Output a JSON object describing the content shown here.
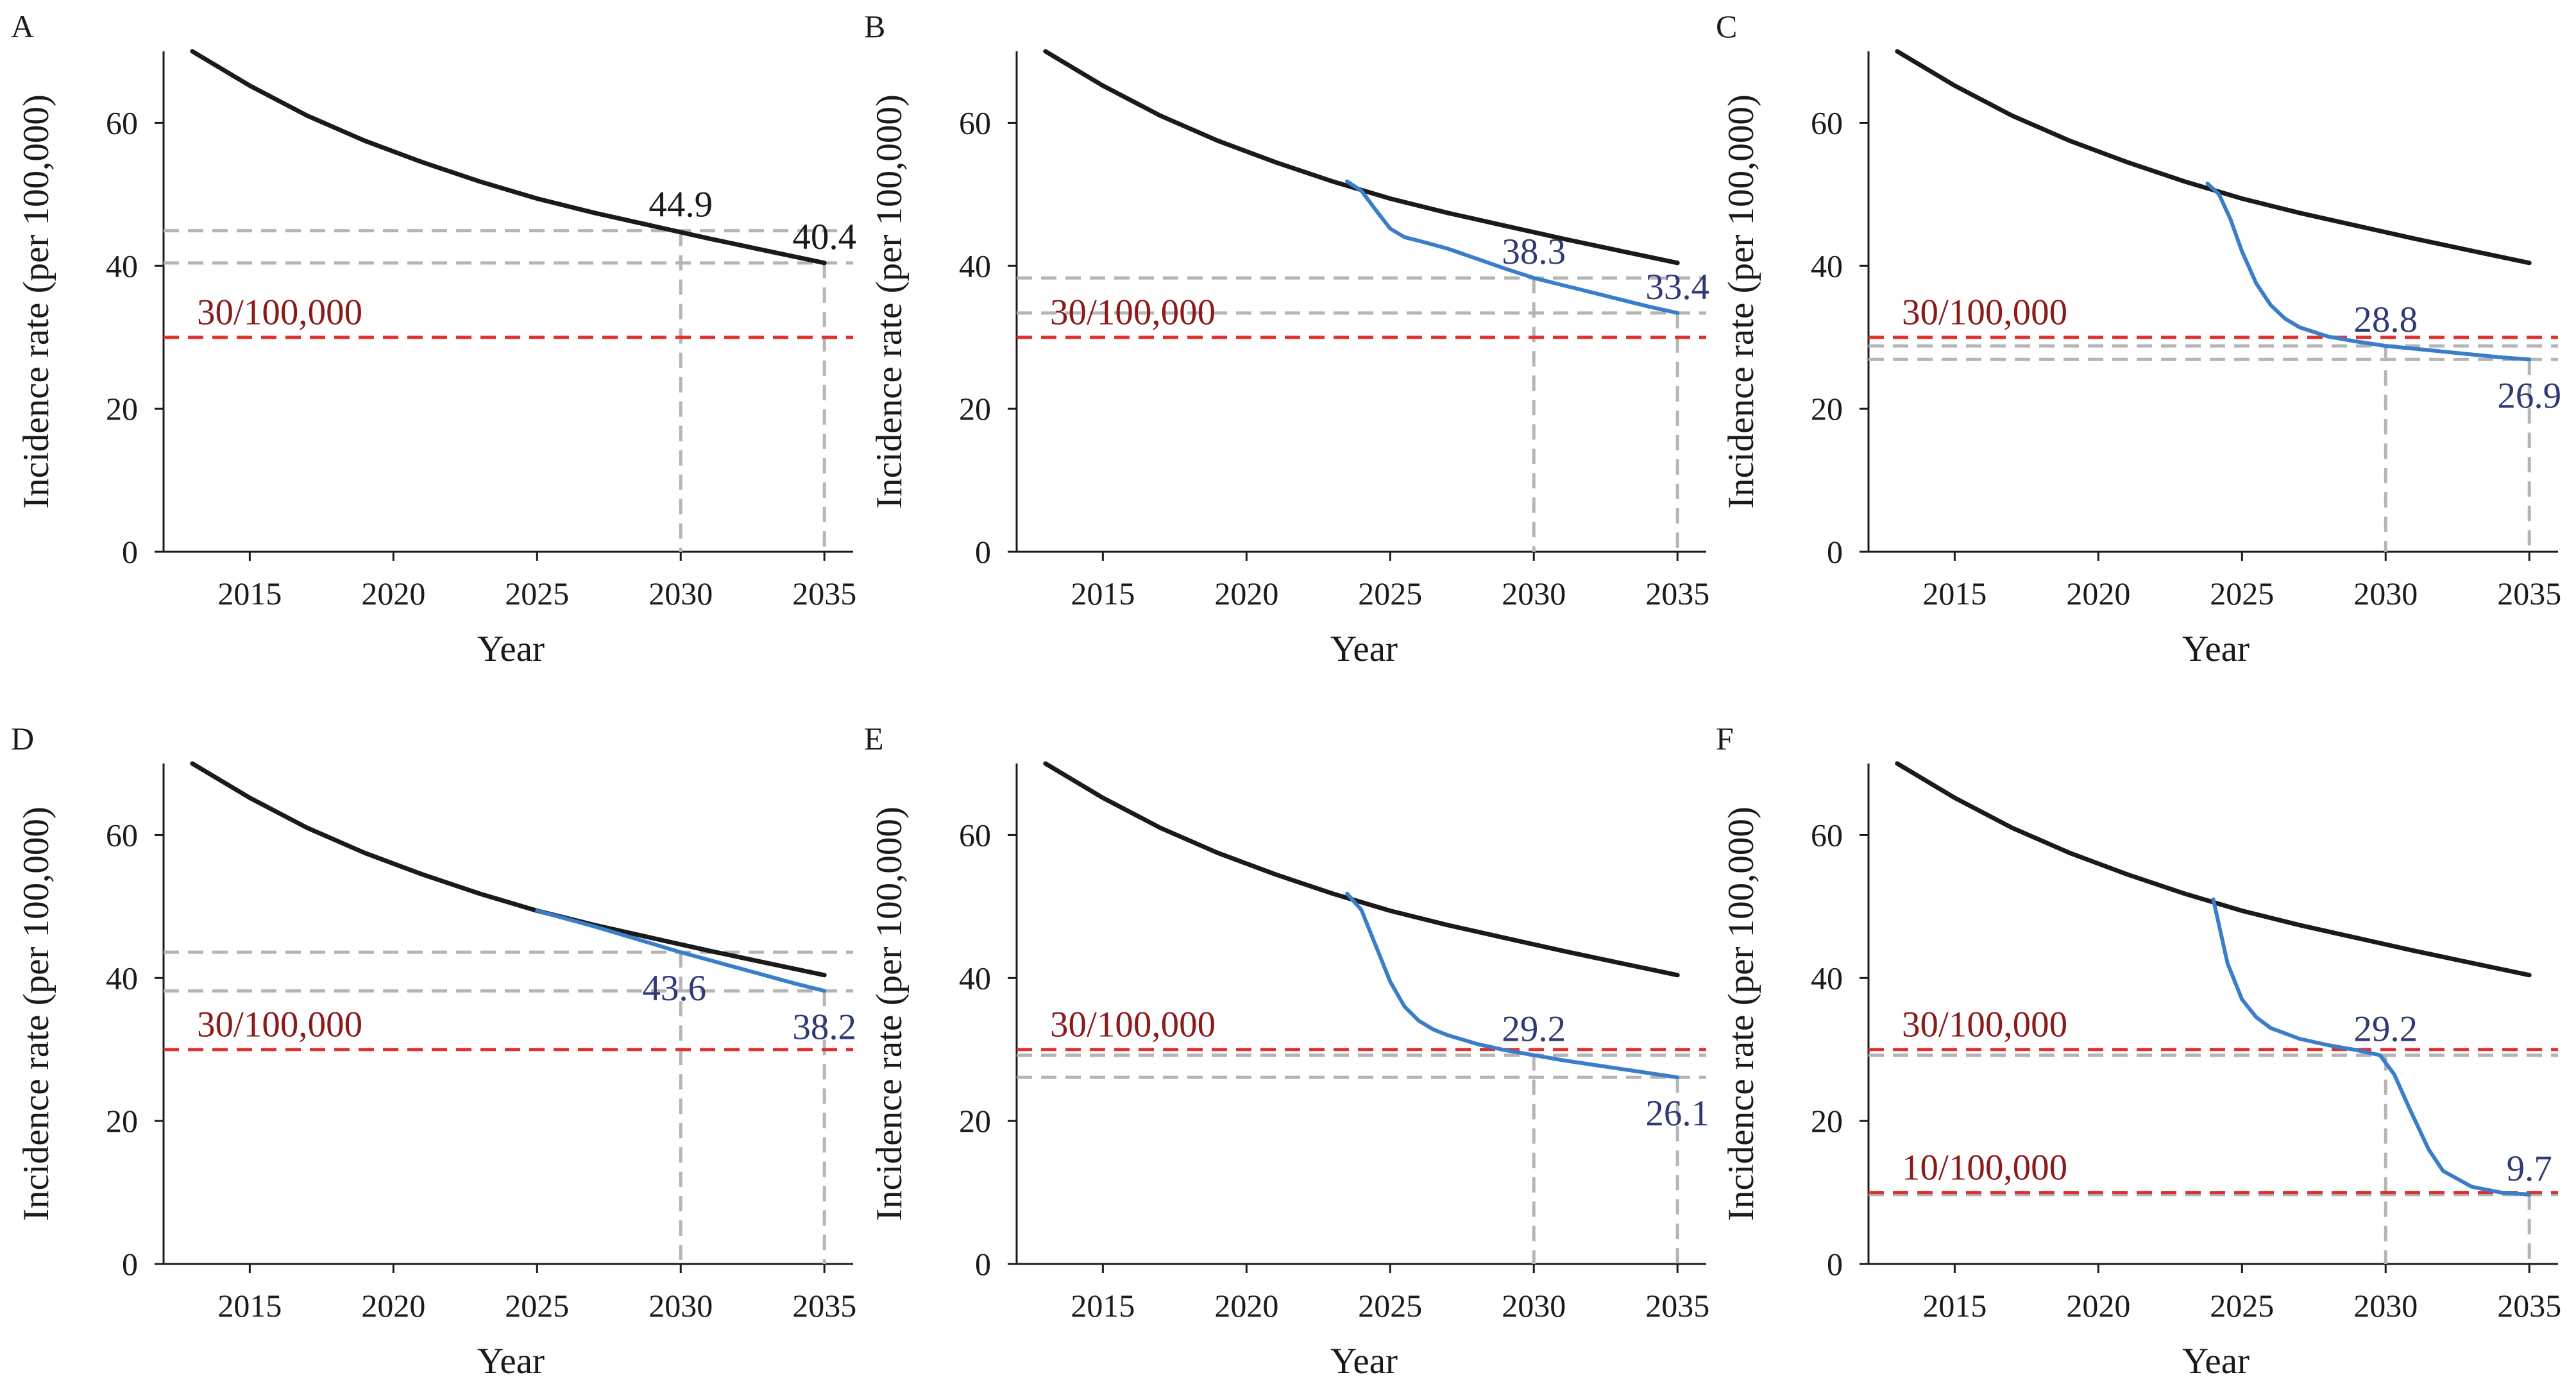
{
  "colors": {
    "baseline": "#1a1a1a",
    "intervention": "#3a7dc9",
    "threshold": "#e0312e",
    "threshold_text": "#8b1a1a",
    "guide": "#b5b5b5",
    "label_black": "#1a1a1a",
    "label_blue": "#2e3a75",
    "axis": "#1a1a1a"
  },
  "chart_data": [
    {
      "panel": "A",
      "type": "line",
      "xlabel": "Year",
      "ylabel": "Incidence rate (per 100,000)",
      "xlim": [
        2012,
        2036
      ],
      "ylim": [
        0,
        70
      ],
      "xticks": [
        2015,
        2020,
        2025,
        2030,
        2035
      ],
      "yticks": [
        0,
        20,
        40,
        60
      ],
      "series": [
        {
          "role": "baseline",
          "x": [
            2013,
            2015,
            2017,
            2019,
            2021,
            2023,
            2025,
            2027,
            2029,
            2031,
            2033,
            2035
          ],
          "y": [
            70.0,
            65.2,
            61.0,
            57.5,
            54.5,
            51.8,
            49.4,
            47.4,
            45.6,
            43.8,
            42.1,
            40.4
          ]
        }
      ],
      "thresholds": [
        {
          "value": 30,
          "label": "30/100,000"
        }
      ],
      "guides": [
        {
          "year": 2030,
          "value": 44.9
        },
        {
          "year": 2035,
          "value": 40.4
        }
      ],
      "annotations": [
        {
          "text": "44.9",
          "x": 2030,
          "y": 44.9,
          "style": "black",
          "pos": "above"
        },
        {
          "text": "40.4",
          "x": 2035,
          "y": 40.4,
          "style": "black",
          "pos": "above"
        }
      ]
    },
    {
      "panel": "B",
      "type": "line",
      "xlabel": "Year",
      "ylabel": "Incidence rate (per 100,000)",
      "xlim": [
        2012,
        2036
      ],
      "ylim": [
        0,
        70
      ],
      "xticks": [
        2015,
        2020,
        2025,
        2030,
        2035
      ],
      "yticks": [
        0,
        20,
        40,
        60
      ],
      "series": [
        {
          "role": "baseline",
          "x": [
            2013,
            2015,
            2017,
            2019,
            2021,
            2023,
            2025,
            2027,
            2029,
            2031,
            2033,
            2035
          ],
          "y": [
            70.0,
            65.2,
            61.0,
            57.5,
            54.5,
            51.8,
            49.4,
            47.4,
            45.6,
            43.8,
            42.1,
            40.4
          ]
        },
        {
          "role": "intervention",
          "x": [
            2023.5,
            2024.0,
            2024.5,
            2025.0,
            2025.5,
            2026.0,
            2027.0,
            2028.0,
            2029.0,
            2030.0,
            2031.0,
            2032.0,
            2033.0,
            2034.0,
            2035.0
          ],
          "y": [
            51.8,
            50.5,
            47.8,
            45.2,
            44.0,
            43.5,
            42.4,
            41.0,
            39.6,
            38.3,
            37.3,
            36.3,
            35.3,
            34.3,
            33.4
          ]
        }
      ],
      "thresholds": [
        {
          "value": 30,
          "label": "30/100,000"
        }
      ],
      "guides": [
        {
          "year": 2030,
          "value": 38.3
        },
        {
          "year": 2035,
          "value": 33.4
        }
      ],
      "annotations": [
        {
          "text": "38.3",
          "x": 2030,
          "y": 38.3,
          "style": "blue",
          "pos": "above"
        },
        {
          "text": "33.4",
          "x": 2035,
          "y": 33.4,
          "style": "blue",
          "pos": "above"
        }
      ]
    },
    {
      "panel": "C",
      "type": "line",
      "xlabel": "Year",
      "ylabel": "Incidence rate (per 100,000)",
      "xlim": [
        2012,
        2036
      ],
      "ylim": [
        0,
        70
      ],
      "xticks": [
        2015,
        2020,
        2025,
        2030,
        2035
      ],
      "yticks": [
        0,
        20,
        40,
        60
      ],
      "series": [
        {
          "role": "baseline",
          "x": [
            2013,
            2015,
            2017,
            2019,
            2021,
            2023,
            2025,
            2027,
            2029,
            2031,
            2033,
            2035
          ],
          "y": [
            70.0,
            65.2,
            61.0,
            57.5,
            54.5,
            51.8,
            49.4,
            47.4,
            45.6,
            43.8,
            42.1,
            40.4
          ]
        },
        {
          "role": "intervention",
          "x": [
            2023.8,
            2024.2,
            2024.6,
            2025.0,
            2025.5,
            2026.0,
            2026.5,
            2027.0,
            2028.0,
            2029.0,
            2030.0,
            2031.0,
            2032.0,
            2033.0,
            2034.0,
            2035.0
          ],
          "y": [
            51.5,
            50.0,
            46.5,
            42.0,
            37.5,
            34.5,
            32.6,
            31.4,
            30.1,
            29.4,
            28.8,
            28.4,
            28.0,
            27.6,
            27.2,
            26.9
          ]
        }
      ],
      "thresholds": [
        {
          "value": 30,
          "label": "30/100,000"
        }
      ],
      "guides": [
        {
          "year": 2030,
          "value": 28.8
        },
        {
          "year": 2035,
          "value": 26.9
        }
      ],
      "annotations": [
        {
          "text": "28.8",
          "x": 2030,
          "y": 28.8,
          "style": "blue",
          "pos": "above"
        },
        {
          "text": "26.9",
          "x": 2035,
          "y": 26.9,
          "style": "blue",
          "pos": "below"
        }
      ]
    },
    {
      "panel": "D",
      "type": "line",
      "xlabel": "Year",
      "ylabel": "Incidence rate (per 100,000)",
      "xlim": [
        2012,
        2036
      ],
      "ylim": [
        0,
        70
      ],
      "xticks": [
        2015,
        2020,
        2025,
        2030,
        2035
      ],
      "yticks": [
        0,
        20,
        40,
        60
      ],
      "series": [
        {
          "role": "baseline",
          "x": [
            2013,
            2015,
            2017,
            2019,
            2021,
            2023,
            2025,
            2027,
            2029,
            2031,
            2033,
            2035
          ],
          "y": [
            70.0,
            65.2,
            61.0,
            57.5,
            54.5,
            51.8,
            49.4,
            47.4,
            45.6,
            43.8,
            42.1,
            40.4
          ]
        },
        {
          "role": "intervention",
          "x": [
            2025.0,
            2026.0,
            2027.0,
            2028.0,
            2029.0,
            2030.0,
            2031.0,
            2032.0,
            2033.0,
            2034.0,
            2035.0
          ],
          "y": [
            49.4,
            48.3,
            47.2,
            46.0,
            44.8,
            43.6,
            42.5,
            41.4,
            40.3,
            39.2,
            38.2
          ]
        }
      ],
      "thresholds": [
        {
          "value": 30,
          "label": "30/100,000"
        }
      ],
      "guides": [
        {
          "year": 2030,
          "value": 43.6
        },
        {
          "year": 2035,
          "value": 38.2
        }
      ],
      "annotations": [
        {
          "text": "43.6",
          "x": 2030,
          "y": 43.6,
          "style": "blue",
          "pos": "below-left"
        },
        {
          "text": "38.2",
          "x": 2035,
          "y": 38.2,
          "style": "blue",
          "pos": "below"
        }
      ]
    },
    {
      "panel": "E",
      "type": "line",
      "xlabel": "Year",
      "ylabel": "Incidence rate (per 100,000)",
      "xlim": [
        2012,
        2036
      ],
      "ylim": [
        0,
        70
      ],
      "xticks": [
        2015,
        2020,
        2025,
        2030,
        2035
      ],
      "yticks": [
        0,
        20,
        40,
        60
      ],
      "series": [
        {
          "role": "baseline",
          "x": [
            2013,
            2015,
            2017,
            2019,
            2021,
            2023,
            2025,
            2027,
            2029,
            2031,
            2033,
            2035
          ],
          "y": [
            70.0,
            65.2,
            61.0,
            57.5,
            54.5,
            51.8,
            49.4,
            47.4,
            45.6,
            43.8,
            42.1,
            40.4
          ]
        },
        {
          "role": "intervention",
          "x": [
            2023.5,
            2024.0,
            2024.5,
            2025.0,
            2025.5,
            2026.0,
            2026.5,
            2027.0,
            2028.0,
            2029.0,
            2030.0,
            2031.0,
            2032.0,
            2033.0,
            2034.0,
            2035.0
          ],
          "y": [
            51.8,
            49.5,
            44.5,
            39.5,
            36.0,
            34.0,
            32.8,
            32.0,
            30.8,
            29.9,
            29.2,
            28.5,
            27.9,
            27.3,
            26.7,
            26.1
          ]
        }
      ],
      "thresholds": [
        {
          "value": 30,
          "label": "30/100,000"
        }
      ],
      "guides": [
        {
          "year": 2030,
          "value": 29.2
        },
        {
          "year": 2035,
          "value": 26.1
        }
      ],
      "annotations": [
        {
          "text": "29.2",
          "x": 2030,
          "y": 29.2,
          "style": "blue",
          "pos": "above"
        },
        {
          "text": "26.1",
          "x": 2035,
          "y": 26.1,
          "style": "blue",
          "pos": "below"
        }
      ]
    },
    {
      "panel": "F",
      "type": "line",
      "xlabel": "Year",
      "ylabel": "Incidence rate (per 100,000)",
      "xlim": [
        2012,
        2036
      ],
      "ylim": [
        0,
        70
      ],
      "xticks": [
        2015,
        2020,
        2025,
        2030,
        2035
      ],
      "yticks": [
        0,
        20,
        40,
        60
      ],
      "series": [
        {
          "role": "baseline",
          "x": [
            2013,
            2015,
            2017,
            2019,
            2021,
            2023,
            2025,
            2027,
            2029,
            2031,
            2033,
            2035
          ],
          "y": [
            70.0,
            65.2,
            61.0,
            57.5,
            54.5,
            51.8,
            49.4,
            47.4,
            45.6,
            43.8,
            42.1,
            40.4
          ]
        },
        {
          "role": "intervention",
          "x": [
            2024.0,
            2024.5,
            2025.0,
            2025.5,
            2026.0,
            2027.0,
            2028.0,
            2029.0,
            2029.8,
            2030.3,
            2030.8,
            2031.5,
            2032.0,
            2033.0,
            2034.0,
            2035.0
          ],
          "y": [
            51.0,
            42.0,
            37.0,
            34.5,
            33.0,
            31.5,
            30.6,
            29.9,
            29.2,
            26.5,
            22.0,
            16.0,
            13.0,
            10.8,
            10.0,
            9.7
          ]
        }
      ],
      "thresholds": [
        {
          "value": 30,
          "label": "30/100,000"
        },
        {
          "value": 10,
          "label": "10/100,000"
        }
      ],
      "guides": [
        {
          "year": 2030,
          "value": 29.2
        },
        {
          "year": 2035,
          "value": 9.7
        }
      ],
      "annotations": [
        {
          "text": "29.2",
          "x": 2030,
          "y": 29.2,
          "style": "blue",
          "pos": "above"
        },
        {
          "text": "9.7",
          "x": 2035,
          "y": 9.7,
          "style": "blue",
          "pos": "above"
        }
      ]
    }
  ]
}
